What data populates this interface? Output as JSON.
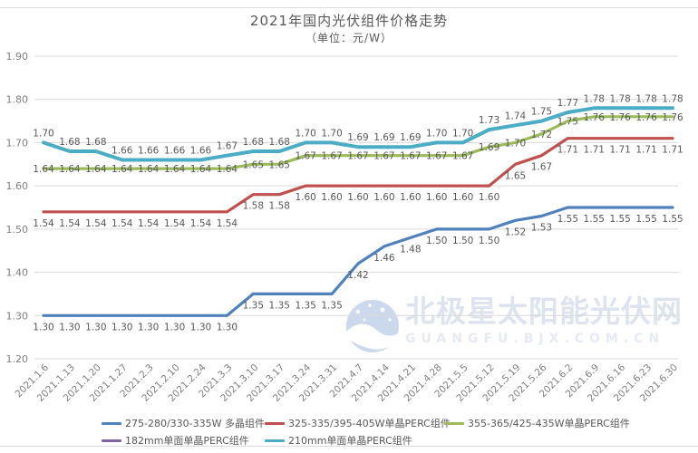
{
  "page": {
    "title": "2021年国内光伏组件价格走势",
    "subtitle": "（单位：元/W）"
  },
  "watermark": {
    "name": "北极星太阳能光伏网",
    "domain": "GUANGFU.BJX.COM.CN"
  },
  "chart_data": {
    "type": "line",
    "title": "2021年国内光伏组件价格走势",
    "unit_label": "（单位：元/W）",
    "ylabel": "元/W",
    "ylim": [
      1.2,
      1.9
    ],
    "y_ticks": [
      1.9,
      1.8,
      1.7,
      1.6,
      1.5,
      1.4,
      1.3,
      1.2
    ],
    "grid": true,
    "legend_position": "bottom",
    "categories": [
      "2021.1.6",
      "2021.1.13",
      "2021.1.20",
      "2021.1.27",
      "2021.2.3",
      "2021.2.10",
      "2021.2.24",
      "2021.3.3",
      "2021.3.10",
      "2021.3.17",
      "2021.3.24",
      "2021.3.31",
      "2021.4.7",
      "2021.4.14",
      "2021.4.21",
      "2021.4.28",
      "2021.5.5",
      "2021.5.12",
      "2021.5.19",
      "2021.5.26",
      "2021.6.2",
      "2021.6.9",
      "2021.6.16",
      "2021.6.23",
      "2021.6.30"
    ],
    "series": [
      {
        "name": "275-280/330-335W 多晶组件",
        "color": "#4F81BD",
        "label_side": "below",
        "stroke_width": 3.2,
        "values": [
          1.3,
          1.3,
          1.3,
          1.3,
          1.3,
          1.3,
          1.3,
          1.3,
          1.35,
          1.35,
          1.35,
          1.35,
          1.42,
          1.46,
          1.48,
          1.5,
          1.5,
          1.5,
          1.52,
          1.53,
          1.55,
          1.55,
          1.55,
          1.55,
          1.55
        ]
      },
      {
        "name": "325-335/395-405W单晶PERC组件",
        "color": "#C0504D",
        "label_side": "below",
        "stroke_width": 3.2,
        "values": [
          1.54,
          1.54,
          1.54,
          1.54,
          1.54,
          1.54,
          1.54,
          1.54,
          1.58,
          1.58,
          1.6,
          1.6,
          1.6,
          1.6,
          1.6,
          1.6,
          1.6,
          1.6,
          1.65,
          1.67,
          1.71,
          1.71,
          1.71,
          1.71,
          1.71
        ]
      },
      {
        "name": "355-365/425-435W单晶PERC组件",
        "color": "#9BBB59",
        "label_side": "center",
        "stroke_width": 3.2,
        "values": [
          1.64,
          1.64,
          1.64,
          1.64,
          1.64,
          1.64,
          1.64,
          1.64,
          1.65,
          1.65,
          1.67,
          1.67,
          1.67,
          1.67,
          1.67,
          1.67,
          1.67,
          1.69,
          1.7,
          1.72,
          1.75,
          1.76,
          1.76,
          1.76,
          1.76
        ]
      },
      {
        "name": "182mm单面单晶PERC组件",
        "color": "#8064A2",
        "label_side": "none",
        "stroke_width": 3.2,
        "values": []
      },
      {
        "name": "210mm单面单晶PERC组件",
        "color": "#4BACC6",
        "label_side": "above",
        "stroke_width": 4,
        "values": [
          1.7,
          1.68,
          1.68,
          1.66,
          1.66,
          1.66,
          1.66,
          1.67,
          1.68,
          1.68,
          1.7,
          1.7,
          1.69,
          1.69,
          1.69,
          1.7,
          1.7,
          1.73,
          1.74,
          1.75,
          1.77,
          1.78,
          1.78,
          1.78,
          1.78
        ]
      }
    ]
  }
}
